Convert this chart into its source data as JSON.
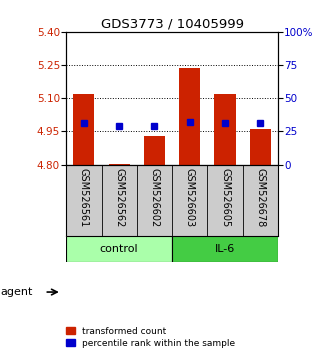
{
  "title": "GDS3773 / 10405999",
  "samples": [
    "GSM526561",
    "GSM526562",
    "GSM526602",
    "GSM526603",
    "GSM526605",
    "GSM526678"
  ],
  "bar_values": [
    5.12,
    4.805,
    4.928,
    5.235,
    5.12,
    4.963
  ],
  "bar_base": 4.8,
  "blue_values": [
    4.99,
    4.975,
    4.975,
    4.993,
    4.99,
    4.988
  ],
  "ylim": [
    4.8,
    5.4
  ],
  "yticks": [
    4.8,
    4.95,
    5.1,
    5.25,
    5.4
  ],
  "y2lim": [
    0,
    100
  ],
  "y2ticks": [
    0,
    25,
    50,
    75,
    100
  ],
  "bar_color": "#cc2200",
  "blue_color": "#0000cc",
  "bar_width": 0.6,
  "group_colors_control": "#aaffaa",
  "group_colors_il6": "#44cc44",
  "background_plot": "#ffffff",
  "background_samples": "#cccccc",
  "dotted_lines": [
    4.95,
    5.1,
    5.25
  ],
  "legend_items": [
    "transformed count",
    "percentile rank within the sample"
  ],
  "legend_colors": [
    "#cc2200",
    "#0000cc"
  ],
  "groups_info": [
    {
      "label": "control",
      "start": 0,
      "end": 2
    },
    {
      "label": "IL-6",
      "start": 3,
      "end": 5
    }
  ]
}
